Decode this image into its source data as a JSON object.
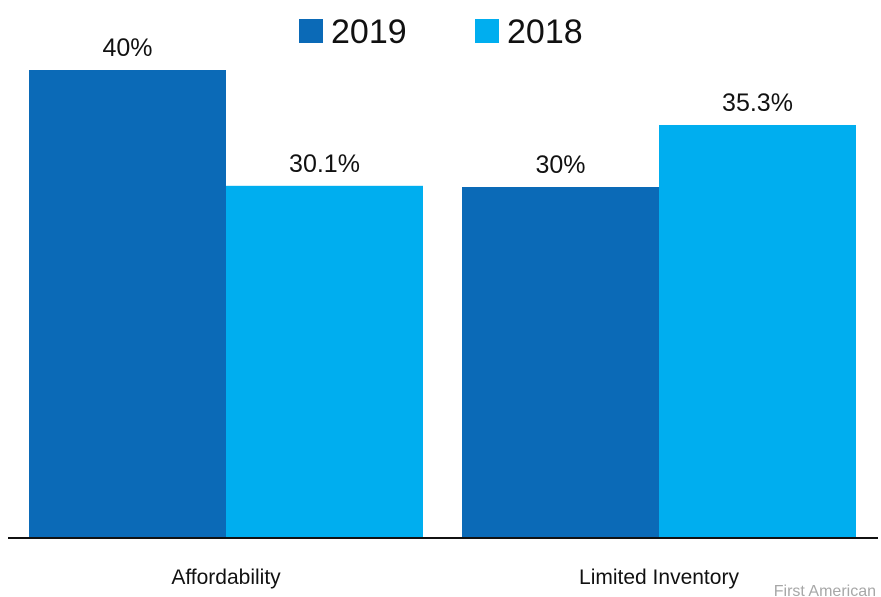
{
  "chart_data": {
    "type": "bar",
    "categories": [
      "Affordability",
      "Limited Inventory"
    ],
    "series": [
      {
        "name": "2019",
        "values": [
          40,
          30
        ],
        "labels": [
          "40%",
          "30%"
        ],
        "color": "#0b6ab7"
      },
      {
        "name": "2018",
        "values": [
          30.1,
          35.3
        ],
        "labels": [
          "30.1%",
          "35.3%"
        ],
        "color": "#00aeef"
      }
    ],
    "ylim": [
      0,
      40
    ],
    "grid": false,
    "legend_position": "top-center",
    "source": "First American"
  }
}
